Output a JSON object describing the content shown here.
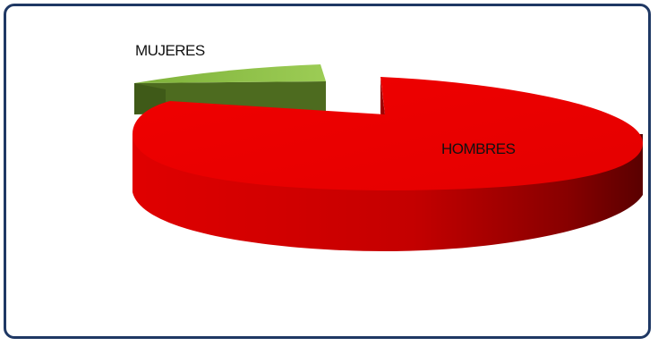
{
  "chart_data": {
    "type": "pie",
    "style": "3d-exploded",
    "legend": "none",
    "slices": [
      {
        "label": "HOMBRES",
        "value": 87,
        "color": "#e60000"
      },
      {
        "label": "MUJERES",
        "value": 13,
        "color": "#8dc63f"
      }
    ]
  },
  "frame": {
    "border_color": "#1f3864"
  }
}
